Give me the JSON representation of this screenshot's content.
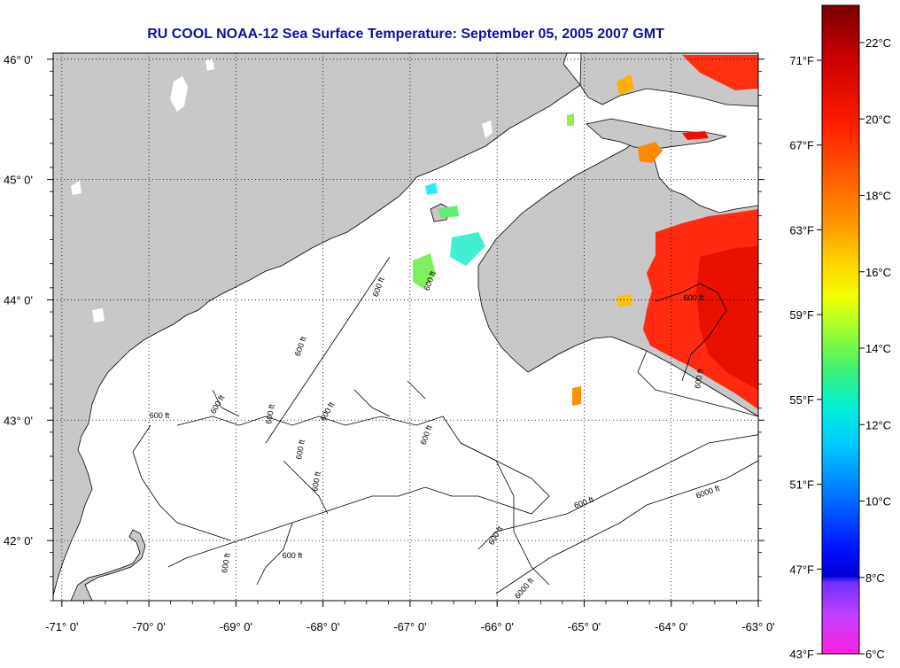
{
  "title": "RU COOL  NOAA-12  Sea Surface Temperature:  September 05, 2005 2007 GMT",
  "map": {
    "lon_range": [
      -71.1,
      -63
    ],
    "lat_range": [
      41.5,
      46.05
    ],
    "lon_ticks": [
      {
        "value": -71,
        "label": "-71° 0'"
      },
      {
        "value": -70,
        "label": "-70° 0'"
      },
      {
        "value": -69,
        "label": "-69° 0'"
      },
      {
        "value": -68,
        "label": "-68° 0'"
      },
      {
        "value": -67,
        "label": "-67° 0'"
      },
      {
        "value": -66,
        "label": "-66° 0'"
      },
      {
        "value": -65,
        "label": "-65° 0'"
      },
      {
        "value": -64,
        "label": "-64° 0'"
      },
      {
        "value": -63,
        "label": "-63° 0'"
      }
    ],
    "lat_ticks": [
      {
        "value": 46,
        "label": "46° 0'"
      },
      {
        "value": 45,
        "label": "45° 0'"
      },
      {
        "value": 44,
        "label": "44° 0'"
      },
      {
        "value": 43,
        "label": "43° 0'"
      },
      {
        "value": 42,
        "label": "42° 0'"
      }
    ],
    "contour_labels": [
      "600 ft",
      "600 ft",
      "600 ft",
      "600 ft",
      "600 ft",
      "600 ft",
      "600 ft",
      "600 ft",
      "600 ft",
      "600 ft",
      "600 ft",
      "600 ft",
      "600 ft",
      "600 ft",
      "600 ft",
      "600 ft",
      "6000 ft",
      "6000 ft"
    ],
    "colors": {
      "land": "#c8c8c8",
      "ocean": "#ffffff",
      "grid": "#000000",
      "title": "#1010a0"
    }
  },
  "colorbar": {
    "celsius_labels": [
      "22°C",
      "20°C",
      "18°C",
      "16°C",
      "14°C",
      "12°C",
      "10°C",
      "8°C",
      "6°C"
    ],
    "fahrenheit_labels": [
      "71°F",
      "67°F",
      "63°F",
      "59°F",
      "55°F",
      "51°F",
      "47°F",
      "43°F"
    ],
    "stops": [
      "#7a0000",
      "#d00000",
      "#ff1a00",
      "#ff6000",
      "#ffa000",
      "#ffe000",
      "#c8ff00",
      "#40f060",
      "#00ffe0",
      "#00b0ff",
      "#0050ff",
      "#0000e0",
      "#8040ff",
      "#ff30e0",
      "#ff00c8"
    ]
  }
}
